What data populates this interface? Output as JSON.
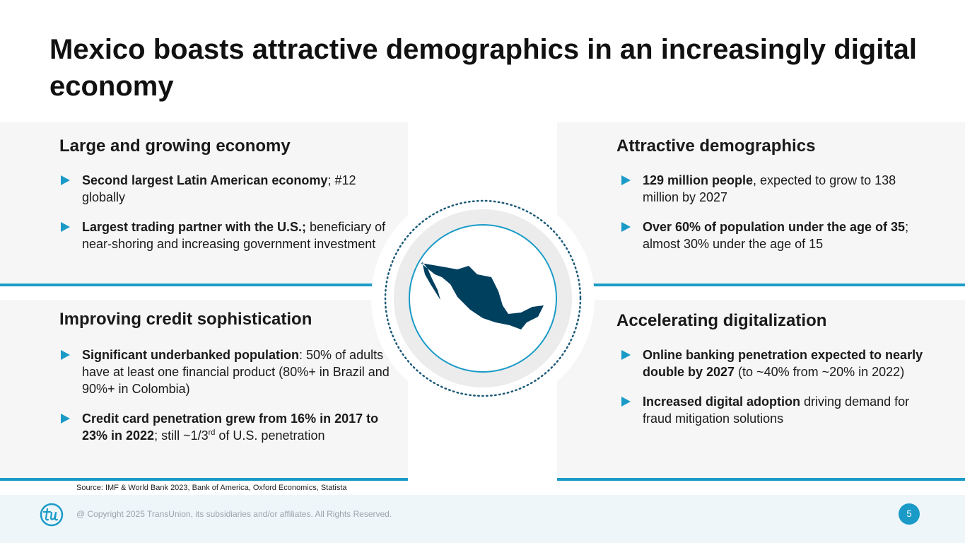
{
  "title": "Mexico boasts attractive demographics in an increasingly digital economy",
  "panels": [
    {
      "heading": "Large and growing economy",
      "bullets": [
        [
          {
            "text": "Second largest Latin American economy",
            "style": "bold"
          },
          {
            "text": "; #12 globally",
            "style": "normal"
          }
        ],
        [
          {
            "text": "Largest trading partner with the U.S.;",
            "style": "bold"
          },
          {
            "text": " beneficiary of near-shoring and increasing government investment",
            "style": "normal"
          }
        ]
      ]
    },
    {
      "heading": "Attractive demographics",
      "bullets": [
        [
          {
            "text": "129 million people",
            "style": "bold"
          },
          {
            "text": ", expected to grow to 138 million by 2027",
            "style": "normal"
          }
        ],
        [
          {
            "text": "Over 60% of population under the age of 35",
            "style": "bold"
          },
          {
            "text": "; almost 30% under the age of 15",
            "style": "normal"
          }
        ]
      ]
    },
    {
      "heading": "Improving credit sophistication",
      "bullets": [
        [
          {
            "text": "Significant underbanked population",
            "style": "bold"
          },
          {
            "text": ": 50% of adults have at least one financial product (80%+ in Brazil and 90%+ in Colombia)",
            "style": "normal"
          }
        ],
        [
          {
            "text": "Credit card penetration grew from 16% in 2017 to 23% in 2022",
            "style": "bold"
          },
          {
            "text": "; still ~1/3",
            "style": "normal"
          },
          {
            "text": "rd",
            "style": "superscript"
          },
          {
            "text": " of U.S. penetration",
            "style": "normal"
          }
        ]
      ]
    },
    {
      "heading": "Accelerating digitalization",
      "bullets": [
        [
          {
            "text": "Online banking penetration expected to nearly double by 2027",
            "style": "bold"
          },
          {
            "text": " (to ~40% from ~20% in 2022)",
            "style": "normal"
          }
        ],
        [
          {
            "text": "Increased digital adoption",
            "style": "bold"
          },
          {
            "text": " driving demand for fraud mitigation solutions",
            "style": "normal"
          }
        ]
      ]
    }
  ],
  "source": "Source: IMF & World Bank 2023, Bank of America, Oxford Economics, Statista",
  "footer": {
    "copyright": "@ Copyright 2025 TransUnion, its subsidiaries and/or affiliates.  All Rights Reserved.",
    "page": 5
  }
}
